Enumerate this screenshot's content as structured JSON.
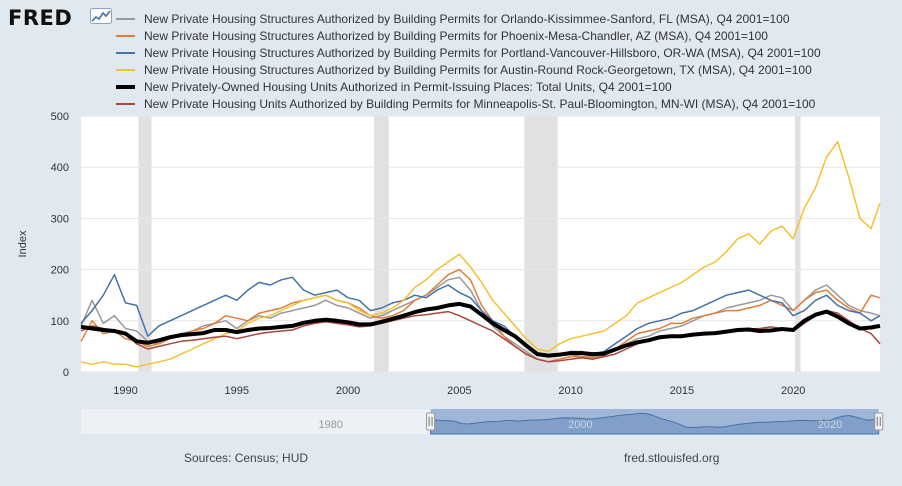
{
  "brand": {
    "name": "FRED",
    "icon": "line-chart-icon"
  },
  "sources": "Sources: Census; HUD",
  "site": "fred.stlouisfed.org",
  "navigator": {
    "tick_labels": [
      "1980",
      "2000",
      "2020"
    ]
  },
  "colors": {
    "background": "#e1e9f0",
    "plot": "#ffffff",
    "recession": "#e1e1e1",
    "navigator_fill": "#9fb6d6",
    "navigator_line": "#4572a7"
  },
  "chart_data": {
    "type": "line",
    "xlabel": "",
    "ylabel": "Index",
    "xlim": [
      1988.0,
      2023.9
    ],
    "ylim": [
      0,
      500
    ],
    "x_ticks": [
      1990,
      1995,
      2000,
      2005,
      2010,
      2015,
      2020
    ],
    "y_ticks": [
      0,
      100,
      200,
      300,
      400,
      500
    ],
    "grid": true,
    "legend_position": "top",
    "recessions": [
      [
        1990.58,
        1991.17
      ],
      [
        2001.17,
        2001.83
      ],
      [
        2007.92,
        2009.42
      ],
      [
        2020.08,
        2020.33
      ]
    ],
    "x": [
      1988,
      1988.5,
      1989,
      1989.5,
      1990,
      1990.5,
      1991,
      1991.5,
      1992,
      1992.5,
      1993,
      1993.5,
      1994,
      1994.5,
      1995,
      1995.5,
      1996,
      1996.5,
      1997,
      1997.5,
      1998,
      1998.5,
      1999,
      1999.5,
      2000,
      2000.5,
      2001,
      2001.5,
      2002,
      2002.5,
      2003,
      2003.5,
      2004,
      2004.5,
      2005,
      2005.5,
      2006,
      2006.5,
      2007,
      2007.5,
      2008,
      2008.5,
      2009,
      2009.5,
      2010,
      2010.5,
      2011,
      2011.5,
      2012,
      2012.5,
      2013,
      2013.5,
      2014,
      2014.5,
      2015,
      2015.5,
      2016,
      2016.5,
      2017,
      2017.5,
      2018,
      2018.5,
      2019,
      2019.5,
      2020,
      2020.5,
      2021,
      2021.5,
      2022,
      2022.5,
      2023,
      2023.5,
      2023.9
    ],
    "series": [
      {
        "name": "New Private Housing Structures Authorized by Building Permits for Orlando-Kissimmee-Sanford, FL (MSA), Q4 2001=100",
        "color": "#999999",
        "width": 1.5,
        "values": [
          90,
          140,
          95,
          110,
          85,
          80,
          60,
          55,
          70,
          75,
          80,
          90,
          95,
          100,
          85,
          100,
          110,
          105,
          115,
          120,
          125,
          130,
          140,
          130,
          125,
          115,
          105,
          110,
          120,
          130,
          140,
          150,
          165,
          180,
          185,
          160,
          120,
          90,
          70,
          55,
          40,
          25,
          20,
          25,
          30,
          35,
          30,
          35,
          45,
          55,
          65,
          70,
          80,
          85,
          90,
          100,
          110,
          115,
          125,
          130,
          135,
          140,
          150,
          145,
          120,
          140,
          160,
          170,
          150,
          130,
          120,
          115,
          110
        ]
      },
      {
        "name": "New Private Housing Structures Authorized by Building Permits for Phoenix-Mesa-Chandler, AZ (MSA), Q4 2001=100",
        "color": "#e07e3c",
        "width": 1.5,
        "values": [
          60,
          100,
          75,
          80,
          65,
          60,
          50,
          55,
          65,
          70,
          80,
          85,
          95,
          110,
          105,
          100,
          115,
          120,
          125,
          135,
          140,
          145,
          150,
          140,
          135,
          125,
          110,
          105,
          110,
          120,
          140,
          150,
          170,
          190,
          200,
          180,
          130,
          100,
          70,
          50,
          35,
          25,
          20,
          25,
          30,
          30,
          28,
          32,
          45,
          60,
          75,
          80,
          85,
          95,
          95,
          105,
          110,
          115,
          120,
          120,
          125,
          130,
          140,
          130,
          120,
          140,
          155,
          160,
          140,
          125,
          115,
          150,
          145
        ]
      },
      {
        "name": "New Private Housing Structures Authorized by Building Permits for Portland-Vancouver-Hillsboro, OR-WA (MSA), Q4 2001=100",
        "color": "#4572a7",
        "width": 1.5,
        "values": [
          95,
          120,
          150,
          190,
          135,
          130,
          70,
          90,
          100,
          110,
          120,
          130,
          140,
          150,
          140,
          160,
          175,
          170,
          180,
          185,
          160,
          150,
          155,
          160,
          145,
          140,
          120,
          125,
          135,
          140,
          150,
          145,
          160,
          170,
          155,
          145,
          120,
          100,
          90,
          70,
          50,
          35,
          30,
          35,
          40,
          40,
          35,
          40,
          55,
          70,
          85,
          95,
          100,
          105,
          115,
          120,
          130,
          140,
          150,
          155,
          160,
          150,
          140,
          135,
          110,
          120,
          140,
          150,
          130,
          120,
          115,
          100,
          110
        ]
      },
      {
        "name": "New Private Housing Structures Authorized by Building Permits for Austin-Round Rock-Georgetown, TX (MSA), Q4 2001=100",
        "color": "#f1c232",
        "width": 1.5,
        "values": [
          20,
          15,
          20,
          15,
          15,
          10,
          15,
          20,
          25,
          35,
          45,
          55,
          65,
          75,
          80,
          95,
          105,
          110,
          120,
          130,
          140,
          145,
          150,
          140,
          135,
          120,
          110,
          115,
          125,
          140,
          165,
          180,
          200,
          215,
          230,
          205,
          175,
          140,
          115,
          90,
          65,
          45,
          40,
          55,
          65,
          70,
          75,
          80,
          95,
          110,
          135,
          145,
          155,
          165,
          175,
          190,
          205,
          215,
          235,
          260,
          270,
          250,
          275,
          285,
          260,
          320,
          360,
          420,
          450,
          380,
          300,
          280,
          330
        ]
      },
      {
        "name": "New Privately-Owned Housing Units Authorized in Permit-Issuing Places: Total Units, Q4 2001=100",
        "color": "#000000",
        "width": 4,
        "values": [
          88,
          85,
          82,
          80,
          75,
          60,
          57,
          62,
          68,
          72,
          74,
          76,
          82,
          82,
          78,
          82,
          85,
          86,
          88,
          90,
          96,
          100,
          102,
          100,
          97,
          93,
          93,
          98,
          104,
          110,
          117,
          122,
          125,
          130,
          133,
          128,
          112,
          95,
          82,
          70,
          52,
          35,
          32,
          34,
          37,
          37,
          35,
          36,
          44,
          52,
          58,
          62,
          68,
          70,
          70,
          73,
          75,
          76,
          79,
          82,
          83,
          80,
          81,
          84,
          82,
          100,
          112,
          118,
          108,
          95,
          85,
          87,
          90
        ]
      },
      {
        "name": "New Private Housing Units Authorized by Building Permits for Minneapolis-St. Paul-Bloomington, MN-WI (MSA), Q4 2001=100",
        "color": "#aa4643",
        "width": 1.5,
        "values": [
          80,
          90,
          85,
          80,
          75,
          55,
          45,
          50,
          55,
          60,
          62,
          65,
          68,
          70,
          65,
          70,
          75,
          78,
          80,
          82,
          90,
          95,
          98,
          95,
          92,
          88,
          90,
          95,
          100,
          105,
          110,
          112,
          115,
          118,
          110,
          100,
          90,
          80,
          65,
          50,
          35,
          25,
          20,
          22,
          25,
          28,
          25,
          30,
          35,
          45,
          55,
          60,
          65,
          70,
          68,
          72,
          75,
          78,
          80,
          82,
          84,
          85,
          88,
          85,
          80,
          95,
          110,
          120,
          115,
          100,
          85,
          75,
          55
        ]
      }
    ]
  }
}
